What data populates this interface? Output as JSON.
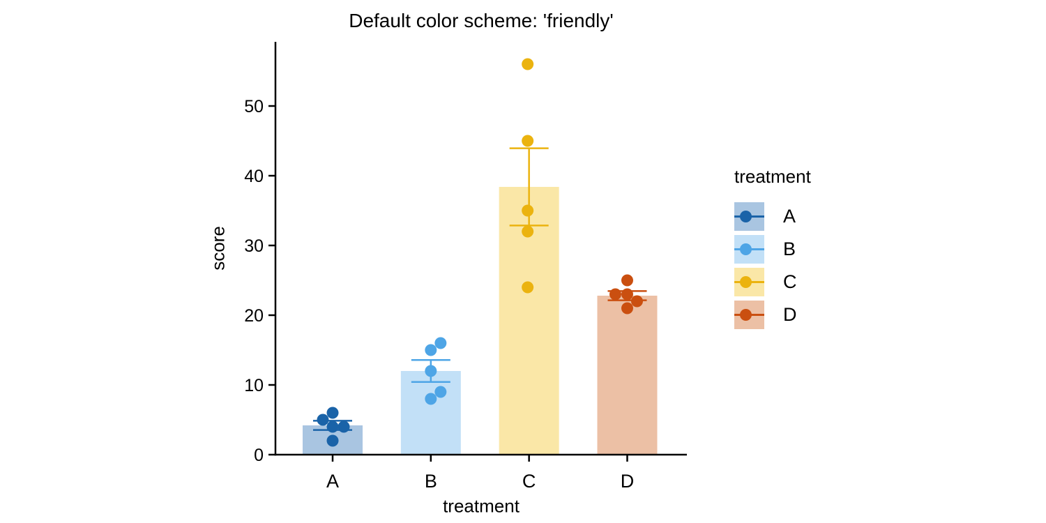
{
  "chart": {
    "title": "Default color scheme: 'friendly'",
    "xlabel": "treatment",
    "ylabel": "score",
    "legend_title": "treatment"
  },
  "chart_data": {
    "type": "bar",
    "subtype": "mean-bars with SE error bars and individual data points",
    "title": "Default color scheme: 'friendly'",
    "xlabel": "treatment",
    "ylabel": "score",
    "categories": [
      "A",
      "B",
      "C",
      "D"
    ],
    "yticks": [
      0,
      10,
      20,
      30,
      40,
      50
    ],
    "ylim": [
      0,
      59
    ],
    "grid": false,
    "legend_position": "right",
    "axis_color": "#000000",
    "series": [
      {
        "name": "A",
        "mean": 4.2,
        "se": 0.66,
        "points": [
          {
            "v": 6,
            "dx": 0
          },
          {
            "v": 5,
            "dx": -14
          },
          {
            "v": 4,
            "dx": 0
          },
          {
            "v": 4,
            "dx": 16
          },
          {
            "v": 2,
            "dx": 0
          }
        ],
        "color": "#1A63A8",
        "fill": "#A9C5E1"
      },
      {
        "name": "B",
        "mean": 12.0,
        "se": 1.58,
        "points": [
          {
            "v": 16,
            "dx": 14
          },
          {
            "v": 15,
            "dx": 0
          },
          {
            "v": 12,
            "dx": 0
          },
          {
            "v": 9,
            "dx": 14
          },
          {
            "v": 8,
            "dx": 0
          }
        ],
        "color": "#4EA5E6",
        "fill": "#C2E0F7"
      },
      {
        "name": "C",
        "mean": 38.4,
        "se": 5.54,
        "points": [
          {
            "v": 56,
            "dx": -2
          },
          {
            "v": 45,
            "dx": -2
          },
          {
            "v": 35,
            "dx": -2
          },
          {
            "v": 32,
            "dx": -2
          },
          {
            "v": 24,
            "dx": -2
          }
        ],
        "color": "#EBB30F",
        "fill": "#FAE7A7"
      },
      {
        "name": "D",
        "mean": 22.8,
        "se": 0.66,
        "points": [
          {
            "v": 25,
            "dx": 0
          },
          {
            "v": 23,
            "dx": -17
          },
          {
            "v": 23,
            "dx": 0
          },
          {
            "v": 22,
            "dx": 14
          },
          {
            "v": 21,
            "dx": 0
          }
        ],
        "color": "#CA4F10",
        "fill": "#ECC0A5"
      }
    ]
  }
}
